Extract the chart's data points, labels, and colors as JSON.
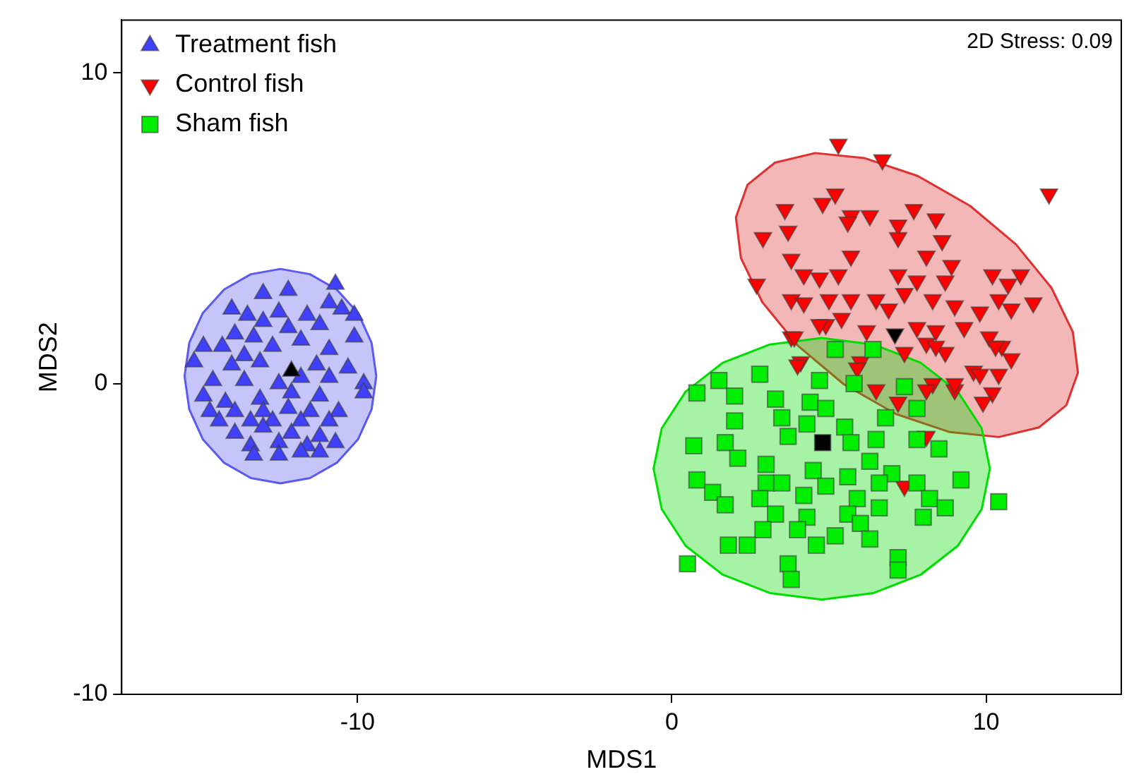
{
  "chart_data": {
    "type": "scatter",
    "xlabel": "MDS1",
    "ylabel": "MDS2",
    "xlim": [
      -17.5,
      14.3
    ],
    "ylim": [
      -10,
      11.7
    ],
    "xticks": [
      -10,
      0,
      10
    ],
    "yticks": [
      -10,
      0,
      10
    ],
    "legend": "top left",
    "annotations": [
      "2D Stress: 0.09"
    ],
    "series": [
      {
        "type": "area",
        "color": "#5a5af0",
        "x": [
          -9.4,
          -9.55,
          -9.98,
          -10.66,
          -11.51,
          -12.45,
          -13.39,
          -14.24,
          -14.92,
          -15.35,
          -15.5,
          -15.35,
          -14.92,
          -14.24,
          -13.39,
          -12.45,
          -11.51,
          -10.66,
          -9.98,
          -9.55,
          -9.4
        ],
        "values": [
          0.24,
          1.31,
          2.27,
          3.03,
          3.52,
          3.69,
          3.52,
          3.03,
          2.27,
          1.31,
          0.24,
          -0.83,
          -1.79,
          -2.55,
          -3.04,
          -3.21,
          -3.04,
          -2.55,
          -1.79,
          -0.83,
          0.24
        ]
      },
      {
        "type": "area",
        "color": "#e03030",
        "x": [
          12.55,
          12.92,
          12.76,
          12.08,
          10.95,
          9.49,
          7.83,
          6.12,
          4.56,
          3.28,
          2.41,
          2.04,
          2.2,
          2.88,
          4.01,
          5.47,
          7.13,
          8.84,
          10.4,
          11.68,
          12.55
        ],
        "values": [
          -0.7,
          0.35,
          1.66,
          3.08,
          4.48,
          5.72,
          6.68,
          7.26,
          7.42,
          7.11,
          6.4,
          5.35,
          4.04,
          2.62,
          1.22,
          -0.02,
          -0.98,
          -1.56,
          -1.72,
          -1.41,
          -0.7
        ]
      },
      {
        "type": "area",
        "color": "#00dd00",
        "x": [
          10.12,
          9.86,
          9.1,
          7.92,
          6.42,
          4.77,
          3.12,
          1.62,
          0.44,
          -0.32,
          -0.58,
          -0.32,
          0.44,
          1.62,
          3.12,
          4.77,
          6.42,
          7.92,
          9.1,
          9.86,
          10.12
        ],
        "values": [
          -2.74,
          -1.44,
          -0.26,
          0.67,
          1.26,
          1.47,
          1.26,
          0.67,
          -0.26,
          -1.44,
          -2.74,
          -4.04,
          -5.22,
          -6.15,
          -6.74,
          -6.95,
          -6.74,
          -6.15,
          -5.22,
          -4.04,
          -2.74
        ]
      },
      {
        "type": "scatter",
        "name": "Treatment fish",
        "color": "#4040ff",
        "marker": "triangle",
        "x": [
          -10.7,
          -13.0,
          -12.2,
          -14.0,
          -10.9,
          -10.5,
          -10.1,
          -13.5,
          -12.5,
          -11.6,
          -13.0,
          -13.9,
          -13.3,
          -12.2,
          -11.2,
          -10.1,
          -14.9,
          -14.3,
          -12.7,
          -11.8,
          -10.9,
          -13.6,
          -15.2,
          -14.0,
          -13.1,
          -11.3,
          -10.3,
          -14.6,
          -13.6,
          -12.5,
          -11.8,
          -10.9,
          -9.8,
          -14.9,
          -14.2,
          -13.1,
          -12.1,
          -11.2,
          -9.8,
          -14.7,
          -13.9,
          -13.0,
          -12.2,
          -11.5,
          -10.6,
          -14.4,
          -13.4,
          -12.7,
          -11.8,
          -10.9,
          -13.9,
          -13.0,
          -12.1,
          -11.2,
          -13.4,
          -12.5,
          -11.6,
          -10.7,
          -13.3,
          -12.5,
          -11.8,
          -11.2
        ],
        "values": [
          3.2,
          2.9,
          3.0,
          2.4,
          2.6,
          2.4,
          2.2,
          2.2,
          2.3,
          2.2,
          2.0,
          1.6,
          1.5,
          1.8,
          1.9,
          1.5,
          1.2,
          1.2,
          1.2,
          1.4,
          1.1,
          0.9,
          0.7,
          0.6,
          0.7,
          0.6,
          0.5,
          0.1,
          0.1,
          0.0,
          0.2,
          0.2,
          0.0,
          -0.4,
          -0.6,
          -0.5,
          -0.3,
          -0.4,
          -0.3,
          -0.9,
          -0.9,
          -0.9,
          -0.8,
          -0.9,
          -0.9,
          -1.2,
          -1.2,
          -1.2,
          -1.2,
          -1.2,
          -1.6,
          -1.4,
          -1.6,
          -1.7,
          -2.0,
          -1.9,
          -2.0,
          -1.9,
          -2.3,
          -2.3,
          -2.2,
          -2.2
        ]
      },
      {
        "type": "scatter",
        "name": "Control fish",
        "color": "#ff0000",
        "marker": "triangle-down",
        "x": [
          5.3,
          6.7,
          12.0,
          5.2,
          4.8,
          3.6,
          5.7,
          6.3,
          7.7,
          8.4,
          3.7,
          2.9,
          5.6,
          7.2,
          7.2,
          8.6,
          3.8,
          8.1,
          8.9,
          10.2,
          11.1,
          10.7,
          2.7,
          4.7,
          5.7,
          4.2,
          5.3,
          7.2,
          7.8,
          8.7,
          3.8,
          4.2,
          5.0,
          5.7,
          6.5,
          7.4,
          8.3,
          9.0,
          9.8,
          10.4,
          11.5,
          10.8,
          3.8,
          4.9,
          5.4,
          6.2,
          6.9,
          7.8,
          8.4,
          9.3,
          10.1,
          10.5,
          10.8,
          4.1,
          6.0,
          7.4,
          8.1,
          8.7,
          9.6,
          10.4,
          8.3,
          9.0,
          10.2,
          3.9,
          4.0,
          5.9,
          6.5,
          7.2,
          8.1,
          9.0,
          9.9,
          9.8,
          10.3,
          8.1,
          7.4,
          4.7,
          8.4
        ],
        "values": [
          7.7,
          7.2,
          6.1,
          6.1,
          5.8,
          5.6,
          5.4,
          5.4,
          5.6,
          5.3,
          4.9,
          4.7,
          5.2,
          5.1,
          4.7,
          4.6,
          4.0,
          4.1,
          3.8,
          3.5,
          3.5,
          3.2,
          3.2,
          3.4,
          4.1,
          3.5,
          3.5,
          3.5,
          3.3,
          3.3,
          2.7,
          2.6,
          2.7,
          2.7,
          2.7,
          2.9,
          2.7,
          2.5,
          2.3,
          2.7,
          2.6,
          2.4,
          1.5,
          1.9,
          2.1,
          1.7,
          2.4,
          1.8,
          1.7,
          1.8,
          1.5,
          1.2,
          0.8,
          0.7,
          0.7,
          1.0,
          1.3,
          1.0,
          0.4,
          0.3,
          0.0,
          -0.2,
          -0.3,
          1.5,
          0.6,
          0.5,
          -0.2,
          -0.6,
          -0.2,
          0.0,
          -0.6,
          0.3,
          1.2,
          -1.7,
          -3.3,
          1.9,
          1.2
        ]
      },
      {
        "type": "scatter",
        "name": "Sham fish",
        "color": "#00ee00",
        "marker": "square",
        "x": [
          5.2,
          6.4,
          7.4,
          7.8,
          4.7,
          5.8,
          0.8,
          1.5,
          2.8,
          2.0,
          3.3,
          4.4,
          4.9,
          2.0,
          3.5,
          4.3,
          5.5,
          6.8,
          7.8,
          8.5,
          0.7,
          1.7,
          2.1,
          3.0,
          3.7,
          5.7,
          6.5,
          7.0,
          6.3,
          4.5,
          3.0,
          3.5,
          5.6,
          0.8,
          1.3,
          1.7,
          2.8,
          4.2,
          4.9,
          5.9,
          6.6,
          7.8,
          8.2,
          8.7,
          9.2,
          8.0,
          3.3,
          4.3,
          5.6,
          6.6,
          6.0,
          2.9,
          4.0,
          5.2,
          6.3,
          1.8,
          2.4,
          4.6,
          3.7,
          7.2,
          7.2,
          3.8,
          0.5,
          10.4
        ],
        "values": [
          1.1,
          1.1,
          -0.1,
          -0.8,
          0.1,
          0.0,
          -0.3,
          0.1,
          0.3,
          -0.4,
          -0.5,
          -0.6,
          -0.8,
          -1.2,
          -1.1,
          -1.3,
          -1.4,
          -1.1,
          -1.8,
          -2.1,
          -2.0,
          -1.9,
          -2.4,
          -2.6,
          -1.7,
          -1.9,
          -1.8,
          -2.9,
          -2.5,
          -2.8,
          -3.2,
          -3.2,
          -3.0,
          -3.1,
          -3.5,
          -3.9,
          -3.7,
          -3.6,
          -3.3,
          -3.7,
          -3.2,
          -3.2,
          -3.7,
          -4.0,
          -3.1,
          -4.3,
          -4.2,
          -4.3,
          -4.2,
          -4.0,
          -4.5,
          -4.7,
          -4.7,
          -4.9,
          -5.0,
          -5.2,
          -5.2,
          -5.2,
          -5.8,
          -5.6,
          -6.0,
          -6.3,
          -5.8,
          -3.8
        ]
      },
      {
        "type": "scatter",
        "color": "#000000",
        "marker": "triangle",
        "x": [
          -12.1
        ],
        "values": [
          0.4
        ]
      },
      {
        "type": "scatter",
        "color": "#000000",
        "marker": "triangle-down",
        "x": [
          7.1
        ],
        "values": [
          1.6
        ]
      },
      {
        "type": "scatter",
        "color": "#000000",
        "marker": "square",
        "x": [
          4.8
        ],
        "values": [
          -1.9
        ]
      }
    ]
  }
}
